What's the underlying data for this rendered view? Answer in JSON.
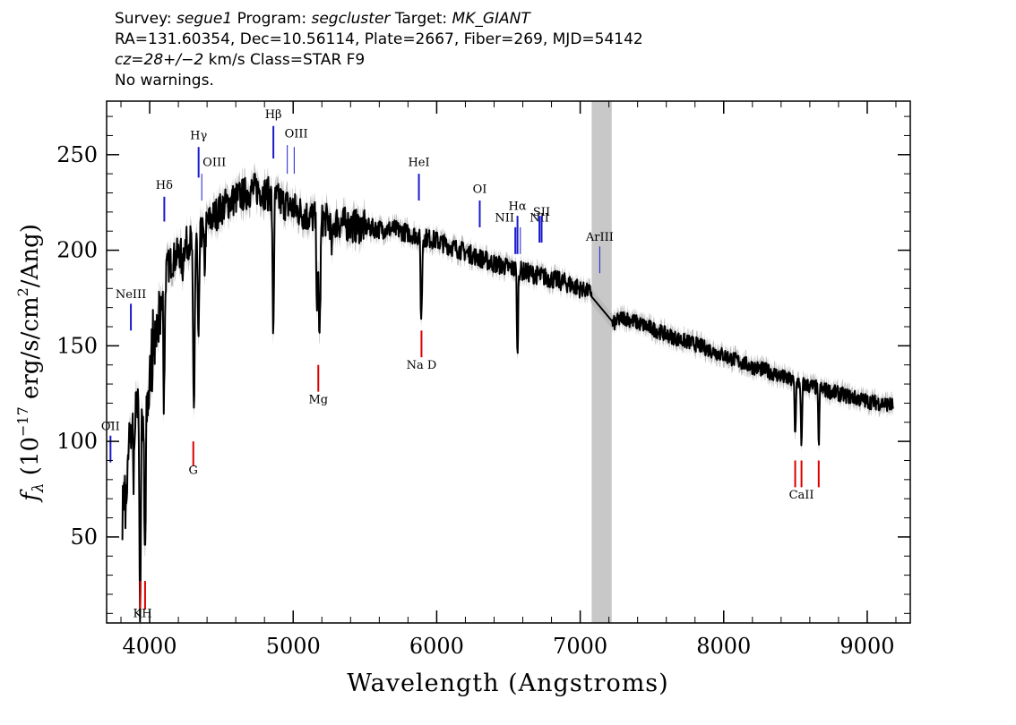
{
  "header": {
    "survey_label": "Survey:",
    "survey": "segue1",
    "program_label": "Program:",
    "program": "segcluster",
    "target_label": "Target:",
    "target": "MK_GIANT",
    "line2": "RA=131.60354, Dec=10.56114, Plate=2667, Fiber=269, MJD=54142",
    "cz": "cz=28+/−2",
    "line3_rest": " km/s Class=STAR F9",
    "line4": "No warnings."
  },
  "chart_data": {
    "type": "line",
    "xlabel": "Wavelength (Angstroms)",
    "ylabel_base": "(10",
    "ylabel_exp": "−17",
    "ylabel_mid": " erg/s/cm",
    "ylabel_exp2": "2",
    "ylabel_end": "/Ang)",
    "ylabel_f": "f",
    "ylabel_sub": "λ",
    "xlim": [
      3700,
      9300
    ],
    "ylim": [
      5,
      278
    ],
    "xticks": [
      4000,
      5000,
      6000,
      7000,
      8000,
      9000
    ],
    "xtick_labels": [
      "4000",
      "5000",
      "6000",
      "7000",
      "8000",
      "9000"
    ],
    "yticks": [
      50,
      100,
      150,
      200,
      250
    ],
    "ytick_labels": [
      "50",
      "100",
      "150",
      "200",
      "250"
    ],
    "masked_band": [
      7080,
      7220
    ],
    "series_color": "#000000",
    "error_color": "#bbbbbb",
    "mask_color": "#c8c8c8",
    "continuum": [
      [
        3810,
        85
      ],
      [
        3850,
        110
      ],
      [
        3900,
        132
      ],
      [
        3950,
        138
      ],
      [
        4000,
        155
      ],
      [
        4050,
        172
      ],
      [
        4100,
        188
      ],
      [
        4150,
        194
      ],
      [
        4200,
        198
      ],
      [
        4250,
        203
      ],
      [
        4300,
        206
      ],
      [
        4350,
        208
      ],
      [
        4400,
        214
      ],
      [
        4450,
        218
      ],
      [
        4500,
        222
      ],
      [
        4550,
        225
      ],
      [
        4600,
        227
      ],
      [
        4650,
        229
      ],
      [
        4700,
        231
      ],
      [
        4750,
        232
      ],
      [
        4800,
        230
      ],
      [
        4850,
        229
      ],
      [
        4900,
        226
      ],
      [
        4950,
        224
      ],
      [
        5000,
        222
      ],
      [
        5050,
        220
      ],
      [
        5100,
        218
      ],
      [
        5200,
        216
      ],
      [
        5300,
        215
      ],
      [
        5400,
        213
      ],
      [
        5500,
        212
      ],
      [
        5600,
        211
      ],
      [
        5700,
        211
      ],
      [
        5800,
        209
      ],
      [
        5900,
        207
      ],
      [
        6000,
        205
      ],
      [
        6100,
        202
      ],
      [
        6200,
        199
      ],
      [
        6300,
        196
      ],
      [
        6400,
        193
      ],
      [
        6500,
        191
      ],
      [
        6600,
        189
      ],
      [
        6700,
        187
      ],
      [
        6800,
        185
      ],
      [
        6900,
        183
      ],
      [
        7000,
        180
      ],
      [
        7080,
        178
      ],
      [
        7220,
        161
      ],
      [
        7300,
        165
      ],
      [
        7400,
        162
      ],
      [
        7500,
        159
      ],
      [
        7600,
        156
      ],
      [
        7700,
        153
      ],
      [
        7800,
        151
      ],
      [
        7900,
        148
      ],
      [
        8000,
        145
      ],
      [
        8100,
        142
      ],
      [
        8200,
        139
      ],
      [
        8300,
        137
      ],
      [
        8400,
        134
      ],
      [
        8500,
        131
      ],
      [
        8600,
        129
      ],
      [
        8700,
        127
      ],
      [
        8800,
        125
      ],
      [
        8900,
        123
      ],
      [
        9000,
        121
      ],
      [
        9100,
        120
      ],
      [
        9180,
        119
      ]
    ],
    "absorption": [
      [
        3835,
        25,
        6
      ],
      [
        3889,
        30,
        6
      ],
      [
        3934,
        100,
        6
      ],
      [
        3968,
        95,
        6
      ],
      [
        4101,
        55,
        5
      ],
      [
        4227,
        12,
        5
      ],
      [
        4308,
        90,
        6
      ],
      [
        4340,
        60,
        5
      ],
      [
        4383,
        20,
        5
      ],
      [
        4861,
        70,
        5
      ],
      [
        5167,
        45,
        5
      ],
      [
        5184,
        60,
        6
      ],
      [
        5270,
        15,
        6
      ],
      [
        5890,
        30,
        4
      ],
      [
        5896,
        26,
        4
      ],
      [
        6563,
        48,
        4
      ],
      [
        8498,
        28,
        4
      ],
      [
        8542,
        35,
        4
      ],
      [
        8662,
        30,
        4
      ]
    ],
    "emission_markers": [
      {
        "label": "Hδ",
        "x": 4102,
        "yTop": 228,
        "yBot": 215,
        "labelY": 232
      },
      {
        "label": "Hγ",
        "x": 4341,
        "yTop": 254,
        "yBot": 238,
        "labelY": 258
      },
      {
        "label": "OIII",
        "x": 4363,
        "yTop": 240,
        "yBot": 226,
        "labelY": 244,
        "dx": 14
      },
      {
        "label": "Hβ",
        "x": 4862,
        "yTop": 265,
        "yBot": 248,
        "labelY": 269
      },
      {
        "label": "OIII",
        "x": 4959,
        "yTop": 255,
        "yBot": 240,
        "labelY": 259,
        "dx": 10
      },
      {
        "label": "",
        "x": 5007,
        "yTop": 254,
        "yBot": 240
      },
      {
        "label": "HeI",
        "x": 5876,
        "yTop": 240,
        "yBot": 226,
        "labelY": 244
      },
      {
        "label": "OI",
        "x": 6300,
        "yTop": 226,
        "yBot": 212,
        "labelY": 230
      },
      {
        "label": "NII",
        "x": 6548,
        "yTop": 212,
        "yBot": 198,
        "labelY": 215,
        "dx": -12
      },
      {
        "label": "Hα",
        "x": 6563,
        "yTop": 218,
        "yBot": 198,
        "labelY": 221
      },
      {
        "label": "",
        "x": 6583,
        "yTop": 212,
        "yBot": 198
      },
      {
        "label": "NII",
        "x": 6716,
        "yTop": 218,
        "yBot": 204,
        "labelY": 215
      },
      {
        "label": "SII",
        "x": 6731,
        "yTop": 218,
        "yBot": 204,
        "labelY": 218
      },
      {
        "label": "ArIII",
        "x": 7136,
        "yTop": 202,
        "yBot": 188,
        "labelY": 205
      },
      {
        "label": "NeIII",
        "x": 3869,
        "yTop": 172,
        "yBot": 158,
        "labelY": 175
      },
      {
        "label": "OII",
        "x": 3727,
        "yTop": 103,
        "yBot": 89,
        "labelY": 106
      }
    ],
    "absorption_markers": [
      {
        "label": "KH",
        "x": 3950,
        "xs": [
          3934,
          3968
        ],
        "yTop": 27,
        "yBot": 12,
        "labelY": 8
      },
      {
        "label": "G",
        "x": 4304,
        "xs": [
          4304
        ],
        "yTop": 100,
        "yBot": 87,
        "labelY": 83
      },
      {
        "label": "Mg",
        "x": 5175,
        "xs": [
          5175
        ],
        "yTop": 140,
        "yBot": 126,
        "labelY": 120
      },
      {
        "label": "Na D",
        "x": 5894,
        "xs": [
          5894
        ],
        "yTop": 158,
        "yBot": 144,
        "labelY": 138
      },
      {
        "label": "CaII",
        "x": 8542,
        "xs": [
          8498,
          8542,
          8662
        ],
        "yTop": 90,
        "yBot": 76,
        "labelY": 70
      }
    ],
    "marker_colors": {
      "emission": "#1a1acc",
      "absorption": "#dd0000"
    }
  }
}
